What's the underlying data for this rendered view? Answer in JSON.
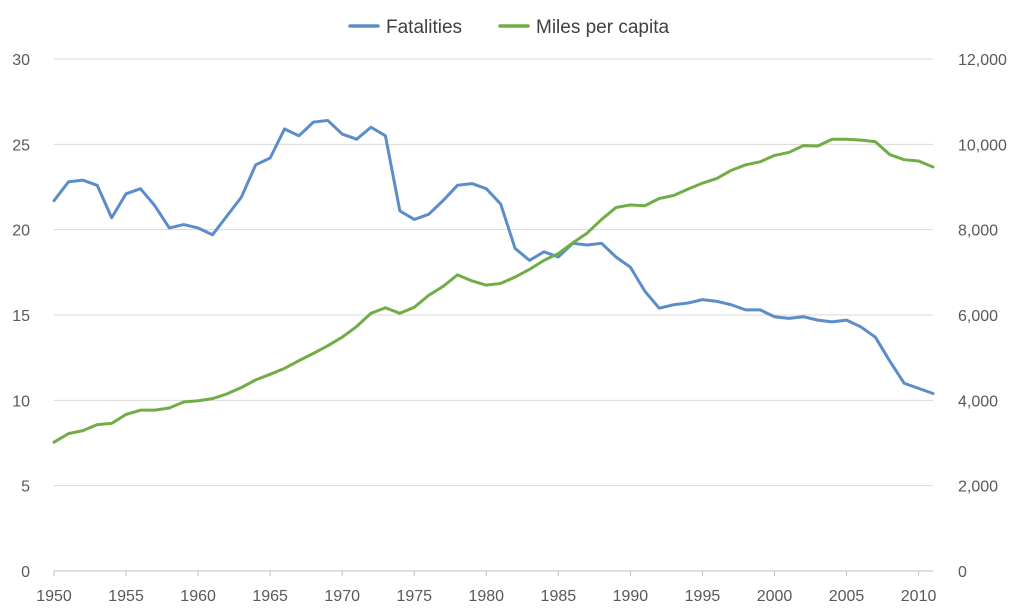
{
  "chart_data": {
    "type": "line",
    "title": "",
    "xlabel": "",
    "ylabel": "",
    "y2label": "",
    "legend_position": "top",
    "grid": true,
    "x": [
      1950,
      1951,
      1952,
      1953,
      1954,
      1955,
      1956,
      1957,
      1958,
      1959,
      1960,
      1961,
      1962,
      1963,
      1964,
      1965,
      1966,
      1967,
      1968,
      1969,
      1970,
      1971,
      1972,
      1973,
      1974,
      1975,
      1976,
      1977,
      1978,
      1979,
      1980,
      1981,
      1982,
      1983,
      1984,
      1985,
      1986,
      1987,
      1988,
      1989,
      1990,
      1991,
      1992,
      1993,
      1994,
      1995,
      1996,
      1997,
      1998,
      1999,
      2000,
      2001,
      2002,
      2003,
      2004,
      2005,
      2006,
      2007,
      2008,
      2009,
      2010,
      2011
    ],
    "xlim": [
      1950,
      2011
    ],
    "xticks": [
      "1950",
      "1955",
      "1960",
      "1965",
      "1970",
      "1975",
      "1980",
      "1985",
      "1990",
      "1995",
      "2000",
      "2005",
      "2010"
    ],
    "ylim_left": [
      0,
      30
    ],
    "yticks_left": [
      "0",
      "5",
      "10",
      "15",
      "20",
      "25",
      "30"
    ],
    "ylim_right": [
      0,
      12000
    ],
    "yticks_right": [
      "0",
      "2,000",
      "4,000",
      "6,000",
      "8,000",
      "10,000",
      "12,000"
    ],
    "series": [
      {
        "name": "Fatalities",
        "axis": "left",
        "color": "#5b8dc9",
        "values": [
          21.7,
          22.8,
          22.9,
          22.6,
          20.7,
          22.1,
          22.4,
          21.4,
          20.1,
          20.3,
          20.1,
          19.7,
          20.8,
          21.9,
          23.8,
          24.2,
          25.9,
          25.5,
          26.3,
          26.4,
          25.6,
          25.3,
          26.0,
          25.5,
          21.1,
          20.6,
          20.9,
          21.7,
          22.6,
          22.7,
          22.4,
          21.5,
          18.9,
          18.2,
          18.7,
          18.4,
          19.2,
          19.1,
          19.2,
          18.4,
          17.8,
          16.4,
          15.4,
          15.6,
          15.7,
          15.9,
          15.8,
          15.6,
          15.3,
          15.3,
          14.9,
          14.8,
          14.9,
          14.7,
          14.6,
          14.7,
          14.3,
          13.7,
          12.3,
          11.0,
          10.7,
          10.4
        ]
      },
      {
        "name": "Miles per capita",
        "axis": "right",
        "color": "#70ad47",
        "values": [
          3020,
          3220,
          3290,
          3430,
          3460,
          3670,
          3770,
          3770,
          3820,
          3960,
          3990,
          4040,
          4150,
          4300,
          4480,
          4610,
          4750,
          4930,
          5100,
          5280,
          5480,
          5730,
          6040,
          6170,
          6040,
          6180,
          6460,
          6670,
          6940,
          6800,
          6700,
          6740,
          6890,
          7070,
          7280,
          7440,
          7690,
          7920,
          8240,
          8520,
          8580,
          8560,
          8730,
          8800,
          8950,
          9090,
          9200,
          9390,
          9520,
          9590,
          9740,
          9810,
          9970,
          9960,
          10120,
          10120,
          10100,
          10060,
          9760,
          9640,
          9610,
          9470
        ]
      }
    ]
  }
}
